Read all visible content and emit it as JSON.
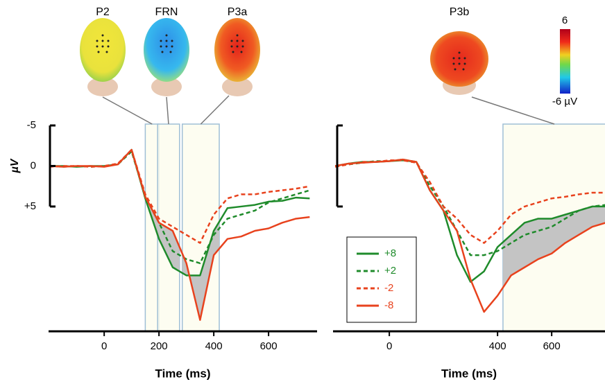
{
  "chart_data": [
    {
      "type": "line",
      "xlabel": "Time (ms)",
      "ylabel": "µV",
      "y_inverted": true,
      "x": [
        -200,
        -150,
        -100,
        -50,
        0,
        50,
        100,
        150,
        200,
        250,
        300,
        350,
        400,
        450,
        500,
        550,
        600,
        650,
        700,
        750
      ],
      "series": [
        {
          "name": "+8",
          "color": "#1f8b2b",
          "dash": false,
          "values": [
            0,
            0,
            0.1,
            0,
            0,
            -0.2,
            -2,
            4,
            9,
            12.5,
            13.5,
            13.5,
            8,
            5.2,
            5,
            4.8,
            4.4,
            4.3,
            3.9,
            4
          ]
        },
        {
          "name": "+2",
          "color": "#1f8b2b",
          "dash": true,
          "values": [
            0,
            0.1,
            0,
            0.1,
            0,
            -0.2,
            -1.8,
            3.8,
            7,
            10.5,
            11.5,
            12,
            8.5,
            6.5,
            6,
            5.5,
            4.5,
            4,
            3.5,
            3
          ]
        },
        {
          "name": "-2",
          "color": "#e8421d",
          "dash": true,
          "values": [
            0.1,
            0,
            0,
            0.1,
            0,
            -0.3,
            -2,
            3.5,
            6.5,
            7.5,
            8.5,
            9.5,
            6,
            4,
            3.5,
            3.5,
            3.2,
            3,
            2.8,
            2.5
          ]
        },
        {
          "name": "-8",
          "color": "#e8421d",
          "dash": false,
          "values": [
            0,
            0.1,
            0,
            0,
            0.1,
            -0.2,
            -2,
            3.8,
            7,
            8,
            12,
            19,
            11,
            9,
            8.7,
            8,
            7.7,
            7,
            6.5,
            6.3
          ]
        }
      ],
      "xlim": [
        -203,
        777
      ],
      "xticks": [
        0,
        200,
        400,
        600
      ],
      "ylim": [
        -5,
        20.4
      ],
      "yticks": [
        -5,
        0,
        {
          "value": 5,
          "label": "+5"
        }
      ],
      "windows": [
        {
          "label": "P2",
          "start": 150,
          "end": 200
        },
        {
          "label": "FRN",
          "start": 195,
          "end": 275
        },
        {
          "label": "P3a",
          "start": 285,
          "end": 420
        }
      ]
    },
    {
      "type": "line",
      "xlabel": "Time (ms)",
      "y_inverted": true,
      "x": [
        -200,
        -150,
        -100,
        -50,
        0,
        50,
        100,
        150,
        200,
        250,
        300,
        350,
        400,
        450,
        500,
        550,
        600,
        650,
        700,
        750,
        800
      ],
      "series": [
        {
          "name": "+8",
          "color": "#1f8b2b",
          "dash": false,
          "values": [
            0,
            -0.3,
            -0.5,
            -0.5,
            -0.6,
            -0.7,
            -0.5,
            3,
            5.5,
            11,
            14.3,
            13,
            10,
            8.5,
            7,
            6.5,
            6.5,
            6,
            5.5,
            5,
            5
          ]
        },
        {
          "name": "+2",
          "color": "#1f8b2b",
          "dash": true,
          "values": [
            0,
            -0.2,
            -0.4,
            -0.6,
            -0.6,
            -0.8,
            -0.5,
            2.5,
            5,
            8,
            11,
            11,
            10.5,
            9.5,
            8.5,
            8,
            7.5,
            6.5,
            5.5,
            5,
            4.8
          ]
        },
        {
          "name": "-2",
          "color": "#e8421d",
          "dash": true,
          "values": [
            0.1,
            -0.2,
            -0.5,
            -0.5,
            -0.7,
            -0.7,
            -0.4,
            2,
            5,
            6.5,
            8.5,
            9.5,
            8,
            6,
            5,
            4.5,
            4,
            3.8,
            3.5,
            3.3,
            3.3
          ]
        },
        {
          "name": "-8",
          "color": "#e8421d",
          "dash": false,
          "values": [
            0,
            -0.3,
            -0.4,
            -0.5,
            -0.6,
            -0.8,
            -0.5,
            3,
            5.5,
            8,
            14,
            18,
            16,
            13.5,
            12.5,
            11.5,
            10.8,
            9.5,
            8.5,
            7.5,
            7
          ]
        }
      ],
      "xlim": [
        -208,
        797
      ],
      "xticks": [
        0,
        400,
        600
      ],
      "ylim": [
        -5,
        20.4
      ],
      "scale_bar": [
        -5,
        5
      ],
      "windows": [
        {
          "label": "P3b",
          "start": 420,
          "end": 800
        }
      ],
      "legend": "inside",
      "colorbar": {
        "max": "6",
        "min": "-6 µV"
      }
    }
  ]
}
